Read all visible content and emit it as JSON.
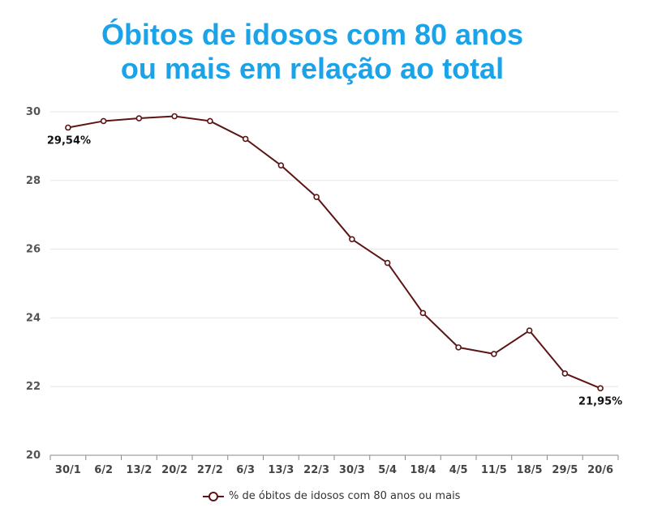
{
  "title_line1": "Óbitos de idosos com 80 anos",
  "title_line2": "ou mais em relação ao total",
  "colors": {
    "title": "#1aa3e8",
    "series": "#5c1414",
    "grid": "#e6e6e6"
  },
  "chart_data": {
    "type": "line",
    "title": "Óbitos de idosos com 80 anos ou mais em relação ao total",
    "xlabel": "",
    "ylabel": "",
    "categories": [
      "30/1",
      "6/2",
      "13/2",
      "20/2",
      "27/2",
      "6/3",
      "13/3",
      "22/3",
      "30/3",
      "5/4",
      "18/4",
      "4/5",
      "11/5",
      "18/5",
      "29/5",
      "20/6"
    ],
    "series": [
      {
        "name": "% de óbitos de idosos com 80 anos ou mais",
        "values": [
          29.54,
          29.73,
          29.81,
          29.87,
          29.73,
          29.21,
          28.44,
          27.52,
          26.29,
          25.6,
          24.14,
          23.14,
          22.95,
          23.63,
          22.38,
          21.95
        ]
      }
    ],
    "ylim": [
      20,
      30
    ],
    "yticks": [
      "20",
      "22",
      "24",
      "26",
      "28",
      "30"
    ],
    "data_labels": [
      {
        "index": 0,
        "text": "29,54%"
      },
      {
        "index": 15,
        "text": "21,95%"
      }
    ],
    "grid": true,
    "legend_position": "bottom"
  }
}
